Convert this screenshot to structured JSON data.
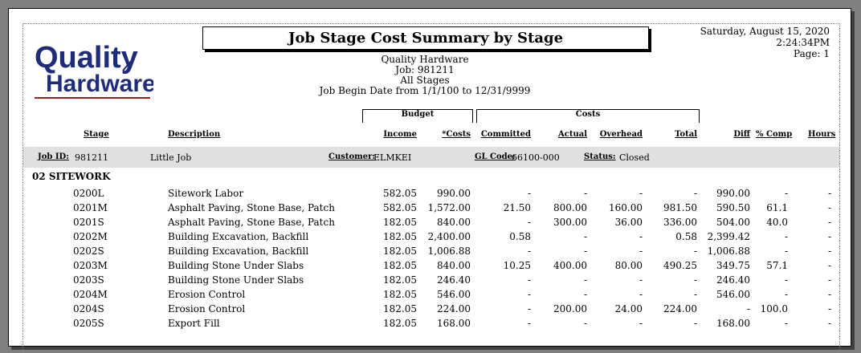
{
  "report": {
    "title": "Job Stage Cost Summary by Stage",
    "date": "Saturday, August 15, 2020",
    "time": "2:24:34PM",
    "page": "Page: 1",
    "company": "Quality Hardware",
    "job_line": "Job:  981211",
    "stages_line": "All Stages",
    "date_range": "Job Begin Date from 1/1/100 to 12/31/9999"
  },
  "logo": {
    "line1": "Quality",
    "line2": "Hardware",
    "color": "#1f2c7a"
  },
  "groups": {
    "budget": "Budget",
    "costs": "Costs"
  },
  "columns": {
    "stage": "Stage",
    "description": "Description",
    "income": "Income",
    "costs": "*Costs",
    "committed": "Committed",
    "actual": "Actual",
    "overhead": "Overhead",
    "total": "Total",
    "diff": "Diff",
    "pct_comp": "% Comp",
    "hours": "Hours"
  },
  "job": {
    "id_label": "Job ID:",
    "id": "981211",
    "name": "Little Job",
    "customer_label": "Customer:",
    "customer": "ELMKEI",
    "gl_label": "GL Code:",
    "gl": "66100-000",
    "status_label": "Status:",
    "status": "Closed"
  },
  "section": "02 SITEWORK",
  "rows": [
    {
      "stage": "0200L",
      "desc": "Sitework Labor",
      "income": "582.05",
      "costs": "990.00",
      "committed": "-",
      "actual": "-",
      "overhead": "-",
      "total": "-",
      "diff": "990.00",
      "pct": "-",
      "hours": "-"
    },
    {
      "stage": "0201M",
      "desc": "Asphalt Paving, Stone Base, Patch",
      "income": "582.05",
      "costs": "1,572.00",
      "committed": "21.50",
      "actual": "800.00",
      "overhead": "160.00",
      "total": "981.50",
      "diff": "590.50",
      "pct": "61.1",
      "hours": "-"
    },
    {
      "stage": "0201S",
      "desc": "Asphalt Paving, Stone Base, Patch",
      "income": "182.05",
      "costs": "840.00",
      "committed": "-",
      "actual": "300.00",
      "overhead": "36.00",
      "total": "336.00",
      "diff": "504.00",
      "pct": "40.0",
      "hours": "-"
    },
    {
      "stage": "0202M",
      "desc": "Building Excavation, Backfill",
      "income": "182.05",
      "costs": "2,400.00",
      "committed": "0.58",
      "actual": "-",
      "overhead": "-",
      "total": "0.58",
      "diff": "2,399.42",
      "pct": "-",
      "hours": "-"
    },
    {
      "stage": "0202S",
      "desc": "Building Excavation, Backfill",
      "income": "182.05",
      "costs": "1,006.88",
      "committed": "-",
      "actual": "-",
      "overhead": "-",
      "total": "-",
      "diff": "1,006.88",
      "pct": "-",
      "hours": "-"
    },
    {
      "stage": "0203M",
      "desc": "Building Stone Under Slabs",
      "income": "182.05",
      "costs": "840.00",
      "committed": "10.25",
      "actual": "400.00",
      "overhead": "80.00",
      "total": "490.25",
      "diff": "349.75",
      "pct": "57.1",
      "hours": "-"
    },
    {
      "stage": "0203S",
      "desc": "Building Stone Under Slabs",
      "income": "182.05",
      "costs": "246.40",
      "committed": "-",
      "actual": "-",
      "overhead": "-",
      "total": "-",
      "diff": "246.40",
      "pct": "-",
      "hours": "-"
    },
    {
      "stage": "0204M",
      "desc": "Erosion Control",
      "income": "182.05",
      "costs": "546.00",
      "committed": "-",
      "actual": "-",
      "overhead": "-",
      "total": "-",
      "diff": "546.00",
      "pct": "-",
      "hours": "-"
    },
    {
      "stage": "0204S",
      "desc": "Erosion Control",
      "income": "182.05",
      "costs": "224.00",
      "committed": "-",
      "actual": "200.00",
      "overhead": "24.00",
      "total": "224.00",
      "diff": "-",
      "pct": "100.0",
      "hours": "-"
    },
    {
      "stage": "0205S",
      "desc": "Export Fill",
      "income": "182.05",
      "costs": "168.00",
      "committed": "-",
      "actual": "-",
      "overhead": "-",
      "total": "-",
      "diff": "168.00",
      "pct": "-",
      "hours": "-"
    }
  ]
}
